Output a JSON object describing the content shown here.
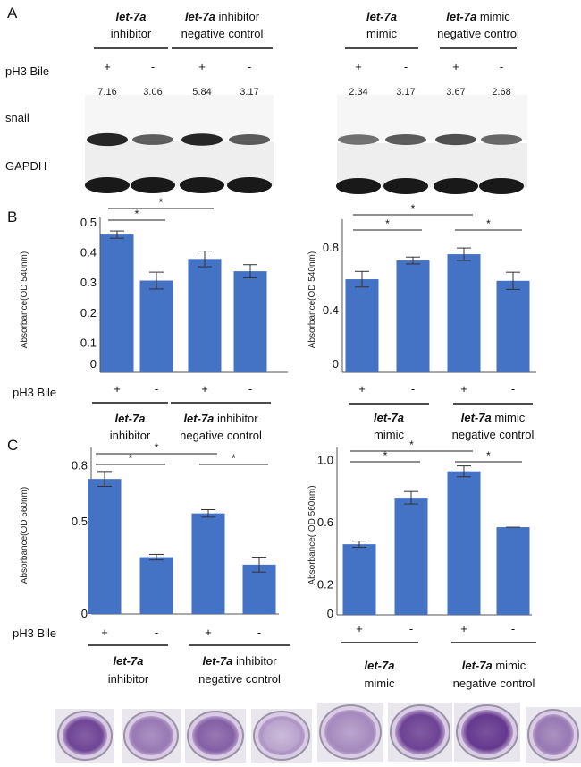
{
  "panels": {
    "a": "A",
    "b": "B",
    "c": "C"
  },
  "blot": {
    "row_label": "pH3 Bile",
    "band_labels": {
      "snail": "snail",
      "gapdh": "GAPDH"
    },
    "left": {
      "groups": [
        {
          "italic": "let-7a",
          "rest": "",
          "line2": "inhibitor"
        },
        {
          "italic": "let-7a",
          "rest": " inhibitor",
          "line2": "negative control"
        }
      ],
      "signs": [
        "+",
        "-",
        "+",
        "-"
      ],
      "densities": [
        "7.16",
        "3.06",
        "5.84",
        "3.17"
      ]
    },
    "right": {
      "groups": [
        {
          "italic": "let-7a",
          "rest": "",
          "line2": "mimic"
        },
        {
          "italic": "let-7a",
          "rest": " mimic",
          "line2": "negative control"
        }
      ],
      "signs": [
        "+",
        "-",
        "+",
        "-"
      ],
      "densities": [
        "2.34",
        "3.17",
        "3.67",
        "2.68"
      ]
    }
  },
  "chart_data": [
    {
      "id": "B-left",
      "type": "bar",
      "ylabel": "Absorbance(OD 540nm)",
      "ylim": [
        0,
        0.5
      ],
      "yticks": [
        {
          "v": 0,
          "label": "0"
        },
        {
          "v": 0.1,
          "label": "0.1"
        },
        {
          "v": 0.2,
          "label": "0.2"
        },
        {
          "v": 0.3,
          "label": "0.3"
        },
        {
          "v": 0.4,
          "label": "0.4"
        },
        {
          "v": 0.5,
          "label": "0.5"
        }
      ],
      "categories": [
        "+",
        "-",
        "+",
        "-"
      ],
      "values": [
        0.458,
        0.305,
        0.377,
        0.336
      ],
      "errors": [
        0.012,
        0.028,
        0.026,
        0.022
      ],
      "color": "#4472c4",
      "x_title": "pH3 Bile",
      "groups": [
        {
          "italic": "let-7a",
          "rest": "",
          "line2": "inhibitor"
        },
        {
          "italic": "let-7a",
          "rest": " inhibitor",
          "line2": "negative control"
        }
      ],
      "significance": [
        {
          "from": 0,
          "to": 1,
          "label": "*"
        },
        {
          "from": 0,
          "to": 2,
          "label": "*"
        }
      ]
    },
    {
      "id": "B-right",
      "type": "bar",
      "ylabel": "Absorbance(OD 540nm)",
      "ylim": [
        0,
        0.95
      ],
      "yticks": [
        {
          "v": 0,
          "label": "0"
        },
        {
          "v": 0.4,
          "label": "0.4"
        },
        {
          "v": 0.8,
          "label": "0.8"
        }
      ],
      "categories": [
        "+",
        "-",
        "+",
        "-"
      ],
      "values": [
        0.595,
        0.715,
        0.755,
        0.585
      ],
      "errors": [
        0.05,
        0.022,
        0.04,
        0.055
      ],
      "color": "#4472c4",
      "groups": [
        {
          "italic": "let-7a",
          "rest": "",
          "line2": "mimic"
        },
        {
          "italic": "let-7a",
          "rest": " mimic",
          "line2": "negative control"
        }
      ],
      "significance": [
        {
          "from": 0,
          "to": 1,
          "label": "*"
        },
        {
          "from": 0,
          "to": 2,
          "label": "*"
        },
        {
          "from": 2,
          "to": 3,
          "label": "*"
        }
      ]
    },
    {
      "id": "C-left",
      "type": "bar",
      "ylabel": "Absorbance(OD 560nm)",
      "ylim": [
        0,
        0.87
      ],
      "yticks": [
        {
          "v": 0,
          "label": "0"
        },
        {
          "v": 0.5,
          "label": "0.5"
        },
        {
          "v": 0.8,
          "label": "0.8"
        }
      ],
      "categories": [
        "+",
        "-",
        "+",
        "-"
      ],
      "values": [
        0.725,
        0.305,
        0.54,
        0.265
      ],
      "errors": [
        0.04,
        0.015,
        0.02,
        0.04
      ],
      "color": "#4472c4",
      "x_title": "pH3 Bile",
      "groups": [
        {
          "italic": "let-7a",
          "rest": "",
          "line2": "inhibitor"
        },
        {
          "italic": "let-7a",
          "rest": " inhibitor",
          "line2": "negative control"
        }
      ],
      "significance": [
        {
          "from": 0,
          "to": 1,
          "label": "*"
        },
        {
          "from": 0,
          "to": 2,
          "label": "*"
        },
        {
          "from": 2,
          "to": 3,
          "label": "*"
        }
      ]
    },
    {
      "id": "C-right",
      "type": "bar",
      "ylabel": "Absorbance( OD 560nm)",
      "ylim": [
        0,
        1.05
      ],
      "yticks": [
        {
          "v": 0,
          "label": "0"
        },
        {
          "v": 0.2,
          "label": "0.2"
        },
        {
          "v": 0.6,
          "label": "0.6"
        },
        {
          "v": 1.0,
          "label": "1.0"
        }
      ],
      "categories": [
        "+",
        "-",
        "+",
        "-"
      ],
      "values": [
        0.455,
        0.755,
        0.925,
        0.565
      ],
      "errors": [
        0.02,
        0.04,
        0.035,
        0.0
      ],
      "color": "#4472c4",
      "groups": [
        {
          "italic": "let-7a",
          "rest": "",
          "line2": "mimic"
        },
        {
          "italic": "let-7a",
          "rest": " mimic",
          "line2": "negative control"
        }
      ],
      "significance": [
        {
          "from": 0,
          "to": 1,
          "label": "*"
        },
        {
          "from": 0,
          "to": 2,
          "label": "*"
        },
        {
          "from": 2,
          "to": 3,
          "label": "*"
        }
      ]
    }
  ],
  "wells": {
    "intensity": [
      0.85,
      0.45,
      0.65,
      0.12,
      0.3,
      0.88,
      0.95,
      0.45
    ],
    "colors": {
      "stain": "#5a2a86",
      "light": "#d9cce4",
      "rim": "#9a92a6"
    }
  }
}
